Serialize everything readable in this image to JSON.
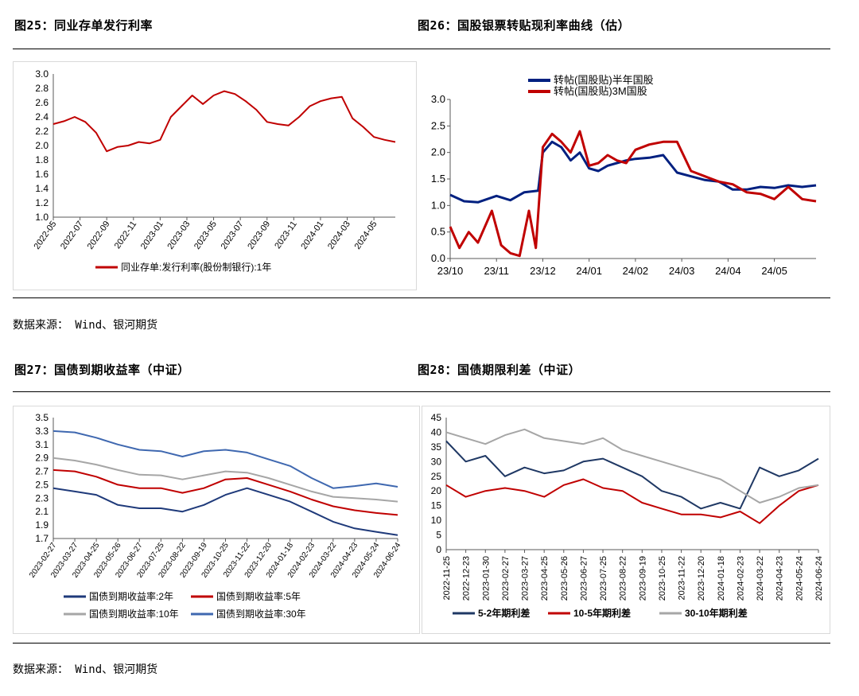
{
  "colors": {
    "red": "#C00000",
    "navy": "#1F3A7A",
    "navy2": "#002080",
    "gray": "#A6A6A6",
    "blue": "#3F68B0",
    "darknavy": "#1F3864"
  },
  "titles": {
    "fig25": "图25：同业存单发行利率",
    "fig26": "图26：国股银票转贴现利率曲线（估）",
    "fig27": "图27：国债到期收益率（中证）",
    "fig28": "图28：国债期限利差（中证）"
  },
  "source1": "数据来源： Wind、银河期货",
  "source2": "数据来源： Wind、银河期货",
  "chart_data": [
    {
      "id": "fig25",
      "type": "line",
      "ylim": [
        1.0,
        3.0
      ],
      "yticks": [
        "3.0",
        "2.8",
        "2.6",
        "2.4",
        "2.2",
        "2.0",
        "1.8",
        "1.6",
        "1.4",
        "1.2",
        "1.0"
      ],
      "xticks": [
        "2022-05",
        "2022-07",
        "2022-09",
        "2022-11",
        "2023-01",
        "2023-03",
        "2023-05",
        "2023-07",
        "2023-09",
        "2023-11",
        "2024-01",
        "2024-03",
        "2024-05"
      ],
      "series": [
        {
          "name": "同业存单:发行利率(股份制银行):1年",
          "color": "#C00000",
          "x": [
            0,
            0.4,
            0.8,
            1.2,
            1.6,
            2.0,
            2.4,
            2.8,
            3.2,
            3.6,
            4.0,
            4.4,
            4.8,
            5.2,
            5.6,
            6.0,
            6.4,
            6.8,
            7.2,
            7.6,
            8.0,
            8.4,
            8.8,
            9.2,
            9.6,
            10.0,
            10.4,
            10.8,
            11.2,
            11.6,
            12.0,
            12.4,
            12.8
          ],
          "values": [
            2.3,
            2.34,
            2.4,
            2.33,
            2.18,
            1.92,
            1.98,
            2.0,
            2.05,
            2.03,
            2.08,
            2.4,
            2.55,
            2.7,
            2.58,
            2.7,
            2.76,
            2.72,
            2.62,
            2.5,
            2.33,
            2.3,
            2.28,
            2.4,
            2.55,
            2.62,
            2.66,
            2.68,
            2.38,
            2.26,
            2.12,
            2.08,
            2.05
          ]
        }
      ]
    },
    {
      "id": "fig26",
      "type": "line",
      "ylim": [
        0.0,
        3.0
      ],
      "yticks": [
        "3.0",
        "2.5",
        "2.0",
        "1.5",
        "1.0",
        "0.5",
        "0.0"
      ],
      "xticks": [
        "23/10",
        "23/11",
        "23/12",
        "24/01",
        "24/02",
        "24/03",
        "24/04",
        "24/05"
      ],
      "series": [
        {
          "name": "转帖(国股贴)半年国股",
          "color": "#002080",
          "x": [
            0,
            0.3,
            0.6,
            1.0,
            1.3,
            1.6,
            1.9,
            2.0,
            2.2,
            2.4,
            2.6,
            2.8,
            3.0,
            3.2,
            3.4,
            3.6,
            3.8,
            4.0,
            4.3,
            4.6,
            4.9,
            5.2,
            5.5,
            5.8,
            6.1,
            6.4,
            6.7,
            7.0,
            7.3,
            7.6,
            7.9
          ],
          "values": [
            1.2,
            1.08,
            1.06,
            1.18,
            1.1,
            1.25,
            1.28,
            2.0,
            2.2,
            2.1,
            1.85,
            2.0,
            1.7,
            1.65,
            1.75,
            1.8,
            1.85,
            1.88,
            1.9,
            1.95,
            1.62,
            1.55,
            1.48,
            1.45,
            1.3,
            1.3,
            1.35,
            1.33,
            1.38,
            1.35,
            1.38
          ]
        },
        {
          "name": "转帖(国股贴)3M国股",
          "color": "#C00000",
          "x": [
            0,
            0.2,
            0.4,
            0.6,
            0.9,
            1.1,
            1.3,
            1.5,
            1.7,
            1.85,
            2.0,
            2.2,
            2.4,
            2.6,
            2.8,
            3.0,
            3.2,
            3.4,
            3.6,
            3.8,
            4.0,
            4.3,
            4.6,
            4.9,
            5.2,
            5.5,
            5.8,
            6.1,
            6.4,
            6.7,
            7.0,
            7.3,
            7.6,
            7.9
          ],
          "values": [
            0.6,
            0.2,
            0.5,
            0.3,
            0.9,
            0.25,
            0.1,
            0.05,
            0.9,
            0.2,
            2.1,
            2.35,
            2.2,
            2.0,
            2.4,
            1.75,
            1.8,
            1.95,
            1.85,
            1.8,
            2.05,
            2.15,
            2.2,
            2.2,
            1.65,
            1.55,
            1.45,
            1.4,
            1.25,
            1.22,
            1.12,
            1.35,
            1.12,
            1.08
          ]
        }
      ]
    },
    {
      "id": "fig27",
      "type": "line",
      "ylim": [
        1.7,
        3.5
      ],
      "yticks": [
        "3.5",
        "3.3",
        "3.1",
        "2.9",
        "2.7",
        "2.5",
        "2.3",
        "2.1",
        "1.9",
        "1.7"
      ],
      "xticks": [
        "2023-02-27",
        "2023-03-27",
        "2023-04-25",
        "2023-05-26",
        "2023-06-27",
        "2023-07-25",
        "2023-08-22",
        "2023-09-19",
        "2023-10-25",
        "2023-11-22",
        "2023-12-20",
        "2024-01-18",
        "2024-02-23",
        "2024-03-22",
        "2024-04-23",
        "2024-05-24",
        "2024-06-24"
      ],
      "series": [
        {
          "name": "国债到期收益率:2年",
          "color": "#1F3A7A",
          "x": [
            0,
            1,
            2,
            3,
            4,
            5,
            6,
            7,
            8,
            9,
            10,
            11,
            12,
            13,
            14,
            15,
            16
          ],
          "values": [
            2.45,
            2.4,
            2.35,
            2.2,
            2.15,
            2.15,
            2.1,
            2.2,
            2.35,
            2.45,
            2.35,
            2.25,
            2.1,
            1.95,
            1.85,
            1.8,
            1.75
          ]
        },
        {
          "name": "国债到期收益率:5年",
          "color": "#C00000",
          "x": [
            0,
            1,
            2,
            3,
            4,
            5,
            6,
            7,
            8,
            9,
            10,
            11,
            12,
            13,
            14,
            15,
            16
          ],
          "values": [
            2.72,
            2.7,
            2.62,
            2.5,
            2.45,
            2.45,
            2.38,
            2.45,
            2.58,
            2.6,
            2.5,
            2.4,
            2.28,
            2.18,
            2.12,
            2.08,
            2.05
          ]
        },
        {
          "name": "国债到期收益率:10年",
          "color": "#A6A6A6",
          "x": [
            0,
            1,
            2,
            3,
            4,
            5,
            6,
            7,
            8,
            9,
            10,
            11,
            12,
            13,
            14,
            15,
            16
          ],
          "values": [
            2.9,
            2.86,
            2.8,
            2.72,
            2.65,
            2.64,
            2.58,
            2.64,
            2.7,
            2.68,
            2.6,
            2.5,
            2.4,
            2.32,
            2.3,
            2.28,
            2.25
          ]
        },
        {
          "name": "国债到期收益率:30年",
          "color": "#3F68B0",
          "x": [
            0,
            1,
            2,
            3,
            4,
            5,
            6,
            7,
            8,
            9,
            10,
            11,
            12,
            13,
            14,
            15,
            16
          ],
          "values": [
            3.3,
            3.28,
            3.2,
            3.1,
            3.02,
            3.0,
            2.92,
            3.0,
            3.02,
            2.98,
            2.88,
            2.78,
            2.6,
            2.45,
            2.48,
            2.52,
            2.47
          ]
        }
      ]
    },
    {
      "id": "fig28",
      "type": "line",
      "ylim": [
        0,
        45
      ],
      "yticks": [
        "45",
        "40",
        "35",
        "30",
        "25",
        "20",
        "15",
        "10",
        "5",
        "0"
      ],
      "xticks": [
        "2022-11-25",
        "2022-12-23",
        "2023-01-30",
        "2023-02-27",
        "2023-03-27",
        "2023-04-25",
        "2023-05-26",
        "2023-06-27",
        "2023-07-25",
        "2023-08-22",
        "2023-09-19",
        "2023-10-25",
        "2023-11-22",
        "2023-12-20",
        "2024-01-18",
        "2024-02-23",
        "2024-03-22",
        "2024-04-23",
        "2024-05-24",
        "2024-06-24"
      ],
      "series": [
        {
          "name": "5-2年期利差",
          "color": "#1F3864",
          "x": [
            0,
            1,
            2,
            3,
            4,
            5,
            6,
            7,
            8,
            9,
            10,
            11,
            12,
            13,
            14,
            15,
            16,
            17,
            18,
            19
          ],
          "values": [
            37,
            30,
            32,
            25,
            28,
            26,
            27,
            30,
            31,
            28,
            25,
            20,
            18,
            14,
            16,
            14,
            28,
            25,
            27,
            31
          ]
        },
        {
          "name": "10-5年期利差",
          "color": "#C00000",
          "x": [
            0,
            1,
            2,
            3,
            4,
            5,
            6,
            7,
            8,
            9,
            10,
            11,
            12,
            13,
            14,
            15,
            16,
            17,
            18,
            19
          ],
          "values": [
            22,
            18,
            20,
            21,
            20,
            18,
            22,
            24,
            21,
            20,
            16,
            14,
            12,
            12,
            11,
            13,
            9,
            15,
            20,
            22
          ]
        },
        {
          "name": "30-10年期利差",
          "color": "#A6A6A6",
          "x": [
            0,
            1,
            2,
            3,
            4,
            5,
            6,
            7,
            8,
            9,
            10,
            11,
            12,
            13,
            14,
            15,
            16,
            17,
            18,
            19
          ],
          "values": [
            40,
            38,
            36,
            39,
            41,
            38,
            37,
            36,
            38,
            34,
            32,
            30,
            28,
            26,
            24,
            20,
            16,
            18,
            21,
            22
          ]
        }
      ]
    }
  ]
}
